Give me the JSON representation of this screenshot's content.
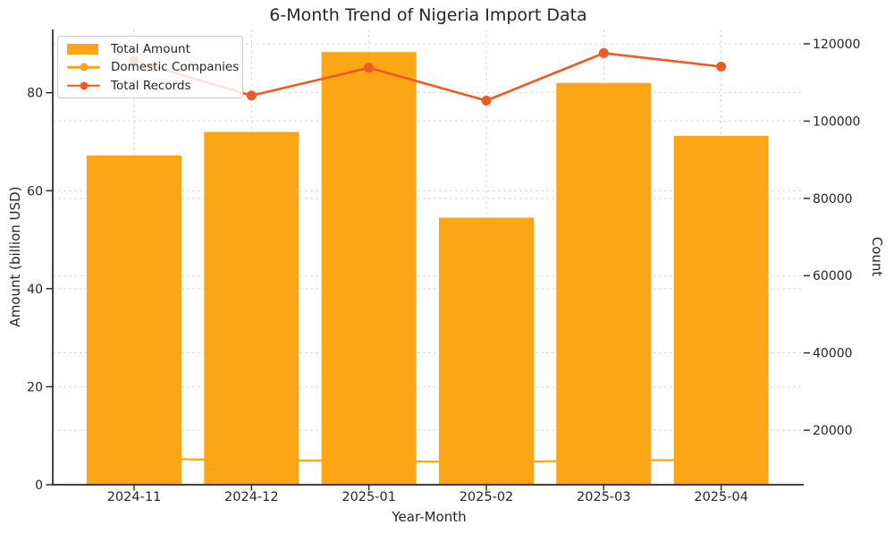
{
  "figure": {
    "title": "6-Month Trend of Nigeria Import Data",
    "xlabel": "Year-Month",
    "ylabel_left": "Amount (billion USD)",
    "ylabel_right": "Count"
  },
  "colors": {
    "bar": "#FCA615",
    "domestic_line": "#FCA615",
    "records_line": "#EC5B24",
    "grid": "#D9D9D9",
    "spine": "#262626",
    "text": "#262626",
    "legend_border": "#CCCCCC"
  },
  "chart_data": {
    "type": "bar",
    "title": "6-Month Trend of Nigeria Import Data",
    "xlabel": "Year-Month",
    "ylabel_left": "Amount (billion USD)",
    "ylabel_right": "Count",
    "categories": [
      "2024-11",
      "2024-12",
      "2025-01",
      "2025-02",
      "2025-03",
      "2025-04"
    ],
    "series": [
      {
        "name": "Total Amount",
        "type": "bar",
        "axis": "left",
        "color": "#FCA615",
        "values": [
          67.2,
          72.0,
          88.3,
          54.5,
          82.0,
          71.2
        ]
      },
      {
        "name": "Domestic Companies",
        "type": "line",
        "axis": "right",
        "color": "#FCA615",
        "values": [
          12800,
          12100,
          12200,
          11600,
          12300,
          12200
        ]
      },
      {
        "name": "Total Records",
        "type": "line",
        "axis": "right",
        "color": "#EC5B24",
        "values": [
          115600,
          106600,
          113800,
          105300,
          117600,
          114100
        ]
      }
    ],
    "left_ticks": [
      0,
      20,
      40,
      60,
      80
    ],
    "right_ticks": [
      20000,
      40000,
      60000,
      80000,
      100000,
      120000
    ],
    "left_ylim": [
      0,
      92.9
    ],
    "right_ylim": [
      5900,
      123700
    ],
    "grid": true,
    "grid_style": "dashed",
    "legend_position": "upper left"
  }
}
